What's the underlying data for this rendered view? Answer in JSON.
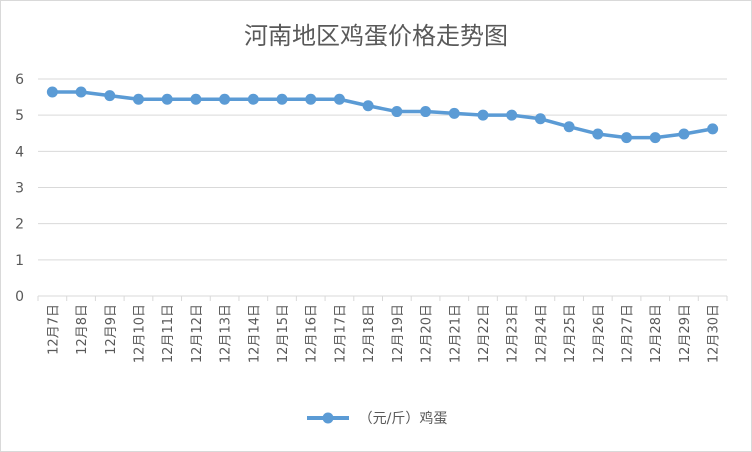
{
  "chart_data": {
    "type": "line",
    "title": "河南地区鸡蛋价格走势图",
    "categories": [
      "12月7日",
      "12月8日",
      "12月9日",
      "12月10日",
      "12月11日",
      "12月12日",
      "12月13日",
      "12月14日",
      "12月15日",
      "12月16日",
      "12月17日",
      "12月18日",
      "12月19日",
      "12月20日",
      "12月21日",
      "12月22日",
      "12月23日",
      "12月24日",
      "12月25日",
      "12月26日",
      "12月27日",
      "12月28日",
      "12月29日",
      "12月30日"
    ],
    "series": [
      {
        "name": "（元/斤）鸡蛋",
        "color": "#5b9bd5",
        "values": [
          5.64,
          5.64,
          5.54,
          5.44,
          5.44,
          5.44,
          5.44,
          5.44,
          5.44,
          5.44,
          5.44,
          5.26,
          5.1,
          5.1,
          5.05,
          5.0,
          5.0,
          4.9,
          4.68,
          4.48,
          4.38,
          4.38,
          4.48,
          4.62
        ]
      }
    ],
    "ylim": [
      0,
      6
    ],
    "yticks": [
      0,
      1,
      2,
      3,
      4,
      5,
      6
    ],
    "grid": true,
    "legend_position": "bottom"
  }
}
